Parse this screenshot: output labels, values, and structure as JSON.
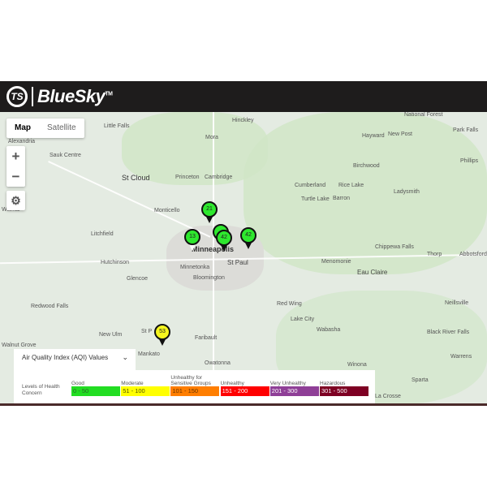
{
  "header": {
    "logo_mark": "TS",
    "brand": "BlueSky",
    "trademark": "TM"
  },
  "map_controls": {
    "map_label": "Map",
    "satellite_label": "Satellite",
    "zoom_in": "+",
    "zoom_out": "−",
    "settings_icon": "gear-icon"
  },
  "map_labels": {
    "little_falls": "Little Falls",
    "hinckley": "Hinckley",
    "mora": "Mora",
    "alexandria": "Alexandria",
    "sauk_centre": "Sauk Centre",
    "st_cloud": "St Cloud",
    "princeton": "Princeton",
    "cambridge": "Cambridge",
    "monticello": "Monticello",
    "litchfield": "Litchfield",
    "hutchinson": "Hutchinson",
    "glencoe": "Glencoe",
    "minneapolis": "Minneapolis",
    "minnetonka": "Minnetonka",
    "st_paul": "St Paul",
    "bloomington": "Bloomington",
    "redwood_falls": "Redwood Falls",
    "new_ulm": "New Ulm",
    "st_peter": "St P",
    "mankato": "Mankato",
    "faribault": "Faribault",
    "owatonna": "Owatonna",
    "red_wing": "Red Wing",
    "lake_city": "Lake City",
    "wabasha": "Wabasha",
    "winona": "Winona",
    "hayward": "Hayward",
    "national_forest": "National Forest",
    "new_post": "New Post",
    "park_falls": "Park Falls",
    "birchwood": "Birchwood",
    "phillips": "Phillips",
    "cumberland": "Cumberland",
    "rice_lake": "Rice Lake",
    "turtle_lake": "Turtle Lake",
    "barron": "Barron",
    "ladysmith": "Ladysmith",
    "chippewa_falls": "Chippewa Falls",
    "menomonie": "Menomonie",
    "eau_claire": "Eau Claire",
    "thorp": "Thorp",
    "abbotsford": "Abbotsford",
    "neillsville": "Neillsville",
    "black_river_falls": "Black River Falls",
    "warrens": "Warrens",
    "sparta": "Sparta",
    "la_crosse": "La Crosse",
    "willmar": "Willmar",
    "walnut_grove": "Walnut Grove"
  },
  "markers": [
    {
      "value": "21",
      "color": "#2ee82e"
    },
    {
      "value": "13",
      "color": "#2ee82e"
    },
    {
      "value": "42",
      "color": "#2ee82e"
    },
    {
      "value": "42",
      "color": "#2ee82e"
    },
    {
      "value": "53",
      "color": "#f5f51e"
    }
  ],
  "aqi_legend": {
    "title": "Air Quality Index (AQI) Values",
    "levels_label": "Levels of Health Concern",
    "categories": [
      {
        "name": "Good",
        "range": "0 - 50",
        "color": "#22dd22",
        "text": "#2a6a2a"
      },
      {
        "name": "Moderate",
        "range": "51 - 100",
        "color": "#ffff00",
        "text": "#555500"
      },
      {
        "name": "Unhealthy for Sensitive Groups",
        "range": "101 - 150",
        "color": "#ff7e00",
        "text": "#6a3300"
      },
      {
        "name": "Unhealthy",
        "range": "151 - 200",
        "color": "#ff0000",
        "text": "#ffffff"
      },
      {
        "name": "Very Unhealthy",
        "range": "201 - 300",
        "color": "#8f3f97",
        "text": "#ffffff"
      },
      {
        "name": "Hazardous",
        "range": "301 - 500",
        "color": "#7e0023",
        "text": "#ffffff"
      }
    ]
  }
}
